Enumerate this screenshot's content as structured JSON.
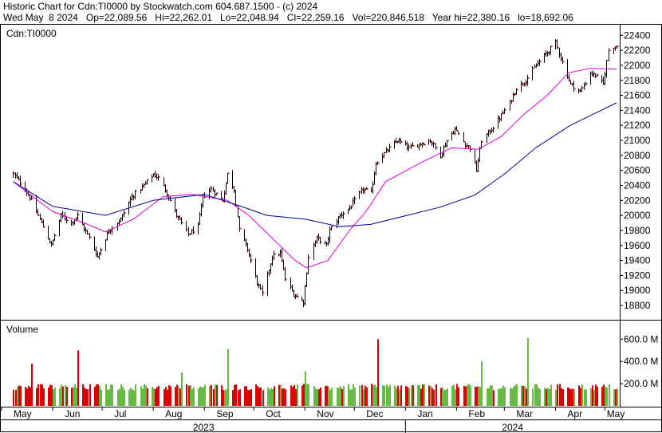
{
  "header": {
    "title_line": "Historic Chart for Cdn:TI0000 by Stockwatch.com 604.687.1500 - (c) 2024",
    "date": "Wed May  8 2024",
    "op": "Op=22,089.56",
    "hi": "Hi=22,262.01",
    "lo": "Lo=22,048.94",
    "cl": "Cl=22,259.16",
    "vol": "Vol=220,846,518",
    "year_hi": "Year hi=22,380.16",
    "year_lo": "lo=18,692.06"
  },
  "chart_data": {
    "type": "line",
    "symbol_label": "Cdn:TI0000",
    "volume_label": "Volume",
    "price_axis": {
      "ticks": [
        18800,
        19000,
        19200,
        19400,
        19600,
        19800,
        20000,
        20200,
        20400,
        20600,
        20800,
        21000,
        21200,
        21400,
        21600,
        21800,
        22000,
        22200,
        22400
      ],
      "ylim": [
        18620,
        22520
      ]
    },
    "volume_axis": {
      "ticks": [
        "200.0 M",
        "400.0 M",
        "600.0 M"
      ],
      "tick_values": [
        200,
        400,
        600
      ],
      "ylim": [
        0,
        760
      ]
    },
    "month_labels": [
      "May",
      "Jun",
      "Jul",
      "Aug",
      "Sep",
      "Oct",
      "Nov",
      "Dec",
      "Jan",
      "Feb",
      "Mar",
      "Apr",
      "May"
    ],
    "year_labels": [
      "2023",
      "2024"
    ],
    "close_series": {
      "name": "Close",
      "color": "#8b0000",
      "anchors": [
        [
          "2023-05-08",
          20550
        ],
        [
          "2023-05-15",
          20350
        ],
        [
          "2023-05-19",
          20200
        ],
        [
          "2023-05-26",
          19850
        ],
        [
          "2023-05-31",
          19600
        ],
        [
          "2023-06-06",
          20000
        ],
        [
          "2023-06-12",
          19900
        ],
        [
          "2023-06-16",
          20000
        ],
        [
          "2023-06-23",
          19700
        ],
        [
          "2023-06-28",
          19450
        ],
        [
          "2023-07-05",
          19800
        ],
        [
          "2023-07-12",
          19950
        ],
        [
          "2023-07-19",
          20250
        ],
        [
          "2023-07-26",
          20400
        ],
        [
          "2023-08-01",
          20550
        ],
        [
          "2023-08-04",
          20500
        ],
        [
          "2023-08-09",
          20300
        ],
        [
          "2023-08-15",
          20000
        ],
        [
          "2023-08-22",
          19750
        ],
        [
          "2023-08-28",
          19850
        ],
        [
          "2023-08-31",
          20250
        ],
        [
          "2023-09-05",
          20350
        ],
        [
          "2023-09-12",
          20200
        ],
        [
          "2023-09-15",
          20550
        ],
        [
          "2023-09-19",
          20350
        ],
        [
          "2023-09-22",
          19800
        ],
        [
          "2023-09-27",
          19550
        ],
        [
          "2023-10-03",
          19100
        ],
        [
          "2023-10-06",
          18950
        ],
        [
          "2023-10-12",
          19450
        ],
        [
          "2023-10-17",
          19500
        ],
        [
          "2023-10-20",
          19150
        ],
        [
          "2023-10-25",
          18950
        ],
        [
          "2023-10-31",
          18850
        ],
        [
          "2023-11-03",
          19450
        ],
        [
          "2023-11-08",
          19700
        ],
        [
          "2023-11-14",
          19600
        ],
        [
          "2023-11-16",
          19800
        ],
        [
          "2023-11-22",
          20000
        ],
        [
          "2023-11-28",
          20100
        ],
        [
          "2023-12-01",
          20200
        ],
        [
          "2023-12-06",
          20350
        ],
        [
          "2023-12-11",
          20300
        ],
        [
          "2023-12-14",
          20700
        ],
        [
          "2023-12-20",
          20850
        ],
        [
          "2023-12-27",
          21000
        ],
        [
          "2024-01-03",
          20900
        ],
        [
          "2024-01-09",
          20950
        ],
        [
          "2024-01-16",
          21000
        ],
        [
          "2024-01-22",
          20800
        ],
        [
          "2024-01-26",
          21000
        ],
        [
          "2024-01-31",
          21150
        ],
        [
          "2024-02-06",
          20950
        ],
        [
          "2024-02-09",
          20900
        ],
        [
          "2024-02-13",
          20600
        ],
        [
          "2024-02-16",
          21000
        ],
        [
          "2024-02-22",
          21150
        ],
        [
          "2024-02-27",
          21300
        ],
        [
          "2024-03-04",
          21500
        ],
        [
          "2024-03-08",
          21700
        ],
        [
          "2024-03-14",
          21800
        ],
        [
          "2024-03-20",
          22000
        ],
        [
          "2024-03-26",
          22150
        ],
        [
          "2024-04-01",
          22300
        ],
        [
          "2024-04-04",
          22100
        ],
        [
          "2024-04-10",
          21750
        ],
        [
          "2024-04-16",
          21650
        ],
        [
          "2024-04-22",
          21900
        ],
        [
          "2024-04-26",
          21850
        ],
        [
          "2024-04-30",
          21750
        ],
        [
          "2024-05-03",
          22200
        ],
        [
          "2024-05-06",
          22250
        ],
        [
          "2024-05-08",
          22259
        ]
      ]
    },
    "moving_averages": [
      {
        "color": "#e000e0",
        "points": [
          [
            "2023-05-08",
            20450
          ],
          [
            "2023-06-01",
            20050
          ],
          [
            "2023-06-20",
            19900
          ],
          [
            "2023-07-03",
            19780
          ],
          [
            "2023-07-20",
            19950
          ],
          [
            "2023-08-07",
            20250
          ],
          [
            "2023-08-25",
            20280
          ],
          [
            "2023-09-15",
            20200
          ],
          [
            "2023-09-28",
            20000
          ],
          [
            "2023-10-12",
            19700
          ],
          [
            "2023-10-26",
            19400
          ],
          [
            "2023-11-02",
            19300
          ],
          [
            "2023-11-15",
            19400
          ],
          [
            "2023-11-28",
            19800
          ],
          [
            "2023-12-08",
            20050
          ],
          [
            "2023-12-20",
            20450
          ],
          [
            "2024-01-10",
            20700
          ],
          [
            "2024-01-29",
            20900
          ],
          [
            "2024-02-14",
            20880
          ],
          [
            "2024-02-28",
            21050
          ],
          [
            "2024-03-13",
            21350
          ],
          [
            "2024-03-27",
            21600
          ],
          [
            "2024-04-09",
            21900
          ],
          [
            "2024-04-22",
            21960
          ],
          [
            "2024-05-08",
            21950
          ]
        ]
      },
      {
        "color": "#00009a",
        "points": [
          [
            "2023-05-08",
            20450
          ],
          [
            "2023-06-01",
            20120
          ],
          [
            "2023-07-03",
            20000
          ],
          [
            "2023-08-01",
            20200
          ],
          [
            "2023-09-01",
            20280
          ],
          [
            "2023-09-22",
            20130
          ],
          [
            "2023-10-09",
            20000
          ],
          [
            "2023-11-01",
            19950
          ],
          [
            "2023-11-22",
            19850
          ],
          [
            "2023-12-11",
            19880
          ],
          [
            "2024-01-02",
            20000
          ],
          [
            "2024-01-22",
            20110
          ],
          [
            "2024-02-12",
            20270
          ],
          [
            "2024-03-01",
            20550
          ],
          [
            "2024-03-20",
            20900
          ],
          [
            "2024-04-10",
            21200
          ],
          [
            "2024-05-08",
            21500
          ]
        ]
      }
    ],
    "volume_bars": {
      "color_up": "#66bb44",
      "color_down": "#dd0000",
      "typical_value": 180,
      "spikes": [
        [
          "2023-05-19",
          380,
          "down"
        ],
        [
          "2023-06-16",
          500,
          "down"
        ],
        [
          "2023-08-18",
          300,
          "up"
        ],
        [
          "2023-09-15",
          510,
          "up"
        ],
        [
          "2023-11-01",
          310,
          "up"
        ],
        [
          "2023-12-15",
          600,
          "down"
        ],
        [
          "2024-02-16",
          400,
          "up"
        ],
        [
          "2024-03-15",
          610,
          "up"
        ]
      ]
    },
    "xlim": [
      "2023-05-01",
      "2024-05-10"
    ],
    "grid": false,
    "legend": "none"
  }
}
